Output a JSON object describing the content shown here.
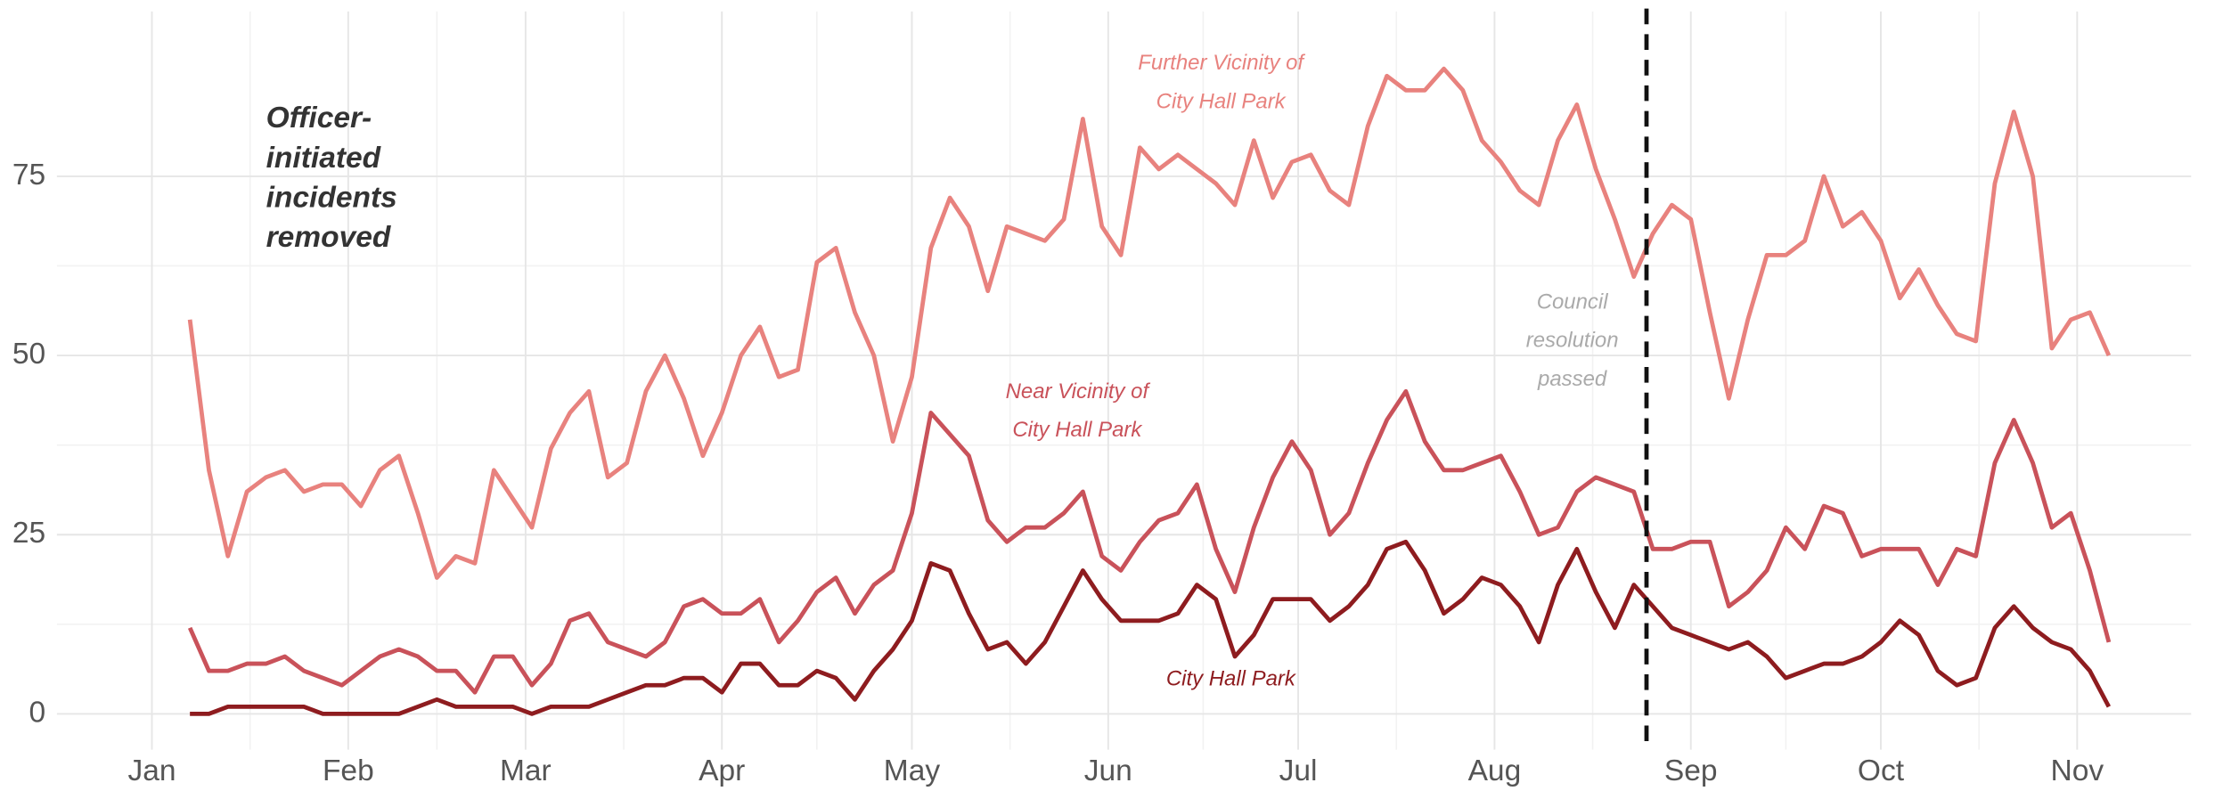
{
  "chart_data": {
    "type": "line",
    "title": [
      "Officer-",
      "initiated",
      "incidents",
      "removed"
    ],
    "xlim": [
      -15,
      322
    ],
    "xticks": [
      {
        "value": 0,
        "label": "Jan"
      },
      {
        "value": 31,
        "label": "Feb"
      },
      {
        "value": 59,
        "label": "Mar"
      },
      {
        "value": 90,
        "label": "Apr"
      },
      {
        "value": 120,
        "label": "May"
      },
      {
        "value": 151,
        "label": "Jun"
      },
      {
        "value": 181,
        "label": "Jul"
      },
      {
        "value": 212,
        "label": "Aug"
      },
      {
        "value": 243,
        "label": "Sep"
      },
      {
        "value": 273,
        "label": "Oct"
      },
      {
        "value": 304,
        "label": "Nov"
      }
    ],
    "ylim": [
      -5,
      98
    ],
    "yticks": [
      0,
      25,
      50,
      75
    ],
    "grid": true,
    "x": [
      6,
      9,
      12,
      15,
      18,
      21,
      24,
      27,
      30,
      33,
      36,
      39,
      42,
      45,
      48,
      51,
      54,
      57,
      60,
      63,
      66,
      69,
      72,
      75,
      78,
      81,
      84,
      87,
      90,
      93,
      96,
      99,
      102,
      105,
      108,
      111,
      114,
      117,
      120,
      123,
      126,
      129,
      132,
      135,
      138,
      141,
      144,
      147,
      150,
      153,
      156,
      159,
      162,
      165,
      168,
      171,
      174,
      177,
      180,
      183,
      186,
      189,
      192,
      195,
      198,
      201,
      204,
      207,
      210,
      213,
      216,
      219,
      222,
      225,
      228,
      231,
      234,
      237,
      240,
      243,
      246,
      249,
      252,
      255,
      258,
      261,
      264,
      267,
      270,
      273,
      276,
      279,
      282,
      285,
      288,
      291,
      294,
      297,
      300,
      303,
      306,
      309
    ],
    "series": [
      {
        "name": [
          "Further Vicinity of",
          "City Hall Park"
        ],
        "color": "#e8827e",
        "values": [
          55,
          34,
          22,
          31,
          33,
          34,
          31,
          32,
          32,
          29,
          34,
          36,
          28,
          19,
          22,
          21,
          34,
          30,
          26,
          37,
          42,
          45,
          33,
          35,
          45,
          50,
          44,
          36,
          42,
          50,
          54,
          47,
          48,
          63,
          65,
          56,
          50,
          38,
          47,
          65,
          72,
          68,
          59,
          68,
          67,
          66,
          69,
          83,
          68,
          64,
          79,
          76,
          78,
          76,
          74,
          71,
          80,
          72,
          77,
          78,
          73,
          71,
          82,
          89,
          87,
          87,
          90,
          87,
          80,
          77,
          73,
          71,
          80,
          85,
          76,
          69,
          61,
          67,
          71,
          69,
          56,
          44,
          55,
          64,
          64,
          66,
          75,
          68,
          70,
          66,
          58,
          62,
          57,
          53,
          52,
          74,
          84,
          75,
          51,
          55,
          56,
          50
        ]
      },
      {
        "name": [
          "Near Vicinity of",
          "City Hall Park"
        ],
        "color": "#c9525a",
        "values": [
          12,
          6,
          6,
          7,
          7,
          8,
          6,
          5,
          4,
          6,
          8,
          9,
          8,
          6,
          6,
          3,
          8,
          8,
          4,
          7,
          13,
          14,
          10,
          9,
          8,
          10,
          15,
          16,
          14,
          14,
          16,
          10,
          13,
          17,
          19,
          14,
          18,
          20,
          28,
          42,
          39,
          36,
          27,
          24,
          26,
          26,
          28,
          31,
          22,
          20,
          24,
          27,
          28,
          32,
          23,
          17,
          26,
          33,
          38,
          34,
          25,
          28,
          35,
          41,
          45,
          38,
          34,
          34,
          35,
          36,
          31,
          25,
          26,
          31,
          33,
          32,
          31,
          23,
          23,
          24,
          24,
          15,
          17,
          20,
          26,
          23,
          29,
          28,
          22,
          23,
          23,
          23,
          18,
          23,
          22,
          35,
          41,
          35,
          26,
          28,
          20,
          10
        ]
      },
      {
        "name": [
          "City Hall Park"
        ],
        "color": "#8e1c1f",
        "values": [
          0,
          0,
          1,
          1,
          1,
          1,
          1,
          0,
          0,
          0,
          0,
          0,
          1,
          2,
          1,
          1,
          1,
          1,
          0,
          1,
          1,
          1,
          2,
          3,
          4,
          4,
          5,
          5,
          3,
          7,
          7,
          4,
          4,
          6,
          5,
          2,
          6,
          9,
          13,
          21,
          20,
          14,
          9,
          10,
          7,
          10,
          15,
          20,
          16,
          13,
          13,
          13,
          14,
          18,
          16,
          8,
          11,
          16,
          16,
          16,
          13,
          15,
          18,
          23,
          24,
          20,
          14,
          16,
          19,
          18,
          15,
          10,
          18,
          23,
          17,
          12,
          18,
          15,
          12,
          11,
          10,
          9,
          10,
          8,
          5,
          6,
          7,
          7,
          8,
          10,
          13,
          11,
          6,
          4,
          5,
          12,
          15,
          12,
          10,
          9,
          6,
          1
        ]
      }
    ],
    "event": {
      "x": 236,
      "label": [
        "Council",
        "resolution",
        "passed"
      ]
    }
  }
}
